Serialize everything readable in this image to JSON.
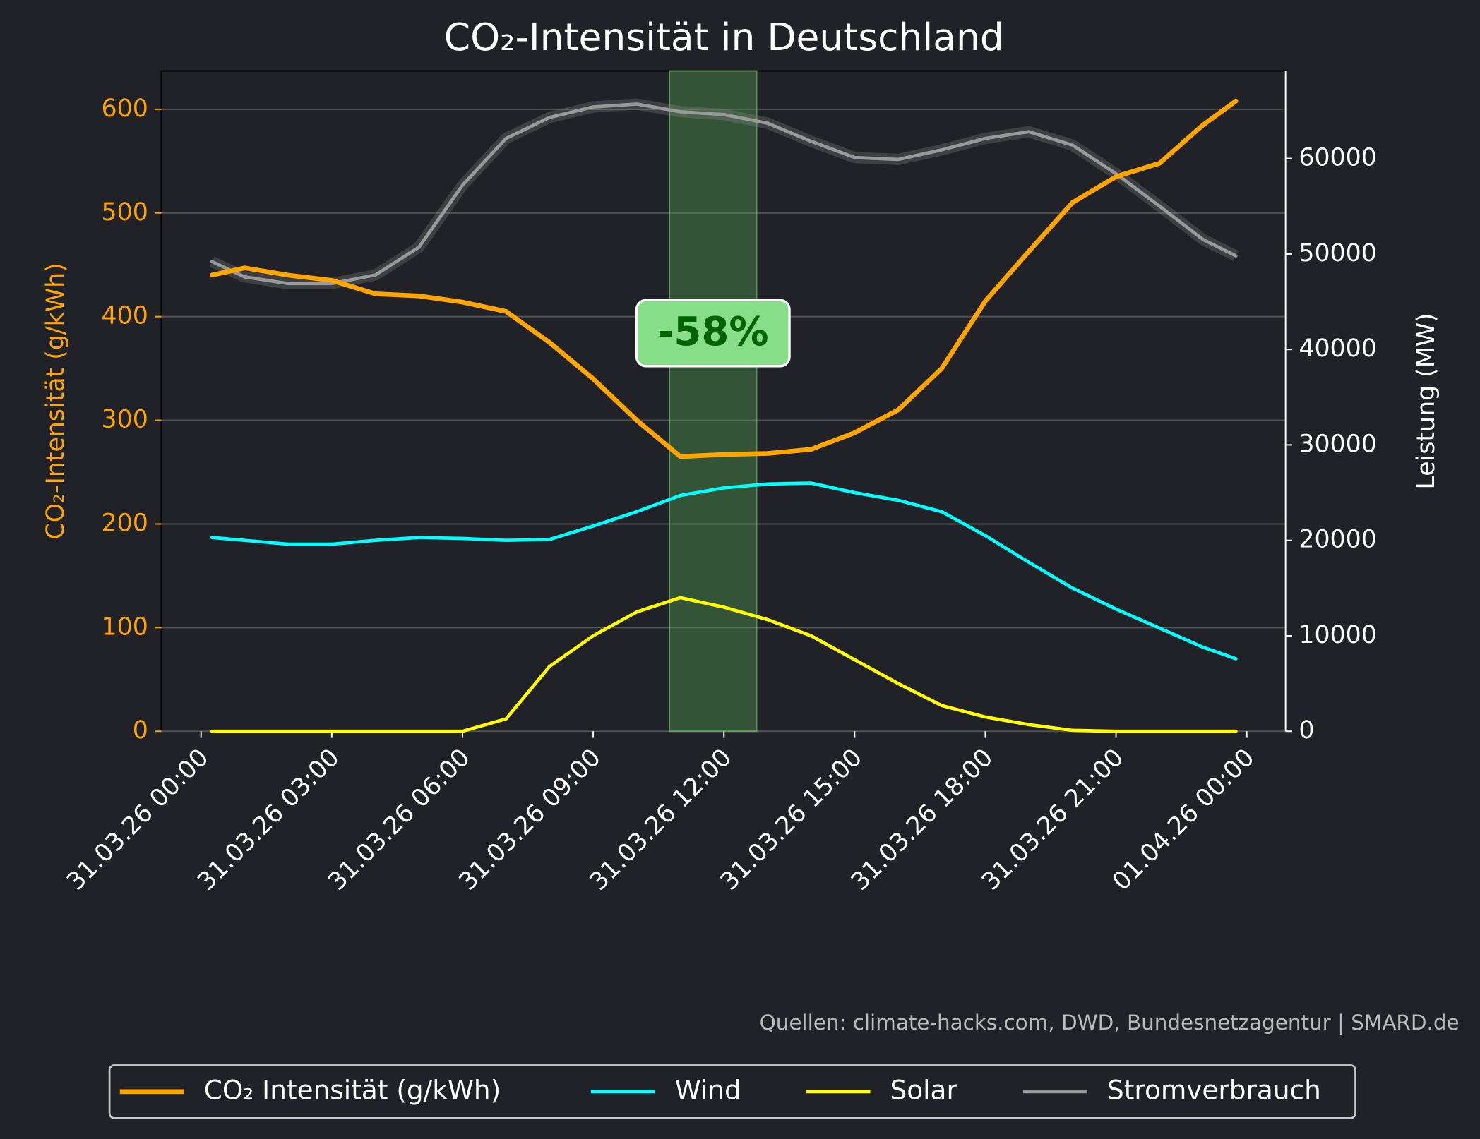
{
  "chart_data": {
    "type": "line",
    "title": "CO₂-Intensität in Deutschland",
    "ylabel": "CO₂-Intensität (g/kWh)",
    "y2label": "Leistung (MW)",
    "source": "Quellen: climate-hacks.com, DWD, Bundesnetzagentur | SMARD.de",
    "x": [
      0.25,
      1,
      2,
      3,
      4,
      5,
      6,
      7,
      8,
      9,
      10,
      11,
      12,
      13,
      14,
      15,
      16,
      17,
      18,
      19,
      20,
      21,
      22,
      23,
      23.75
    ],
    "xlim": [
      -0.91,
      24.89
    ],
    "xticks": [
      {
        "value": 0,
        "label": "31.03.26 00:00"
      },
      {
        "value": 3,
        "label": "31.03.26 03:00"
      },
      {
        "value": 6,
        "label": "31.03.26 06:00"
      },
      {
        "value": 9,
        "label": "31.03.26 09:00"
      },
      {
        "value": 12,
        "label": "31.03.26 12:00"
      },
      {
        "value": 15,
        "label": "31.03.26 15:00"
      },
      {
        "value": 18,
        "label": "31.03.26 18:00"
      },
      {
        "value": 21,
        "label": "31.03.26 21:00"
      },
      {
        "value": 24,
        "label": "01.04.26 00:00"
      }
    ],
    "ylim": [
      0,
      637
    ],
    "yticks": [
      0,
      100,
      200,
      300,
      400,
      500,
      600
    ],
    "y2lim": [
      0,
      69170
    ],
    "y2ticks": [
      0,
      10000,
      20000,
      30000,
      40000,
      50000,
      60000
    ],
    "grid": true,
    "highlight": [
      10.75,
      12.75
    ],
    "annotation": {
      "text": "-58%",
      "x": 11.75,
      "y": 385
    },
    "series": [
      {
        "name": "CO₂ Intensität (g/kWh)",
        "color": "#ffa500",
        "axis": "y",
        "values": [
          440,
          447,
          440,
          435,
          422,
          420,
          414,
          405,
          375,
          340,
          300,
          265,
          267,
          268,
          272,
          288,
          310,
          350,
          415,
          463,
          510,
          535,
          548,
          585,
          608
        ]
      },
      {
        "name": "Wind",
        "color": "#00ffff",
        "axis": "y2",
        "values": [
          20300,
          20000,
          19600,
          19600,
          20000,
          20300,
          20200,
          20000,
          20100,
          21500,
          23000,
          24700,
          25500,
          25900,
          26000,
          25000,
          24200,
          23000,
          20500,
          17700,
          15000,
          12800,
          10800,
          8800,
          7600
        ]
      },
      {
        "name": "Solar",
        "color": "#ffff00",
        "axis": "y2",
        "values": [
          0,
          0,
          0,
          0,
          0,
          0,
          0,
          1300,
          6800,
          10000,
          12500,
          14000,
          13000,
          11700,
          10000,
          7500,
          5000,
          2700,
          1500,
          700,
          100,
          0,
          0,
          0,
          0
        ]
      },
      {
        "name": "Stromverbrauch",
        "color": "#999999",
        "axis": "y2",
        "values": [
          49200,
          47600,
          46900,
          46900,
          47800,
          50700,
          57200,
          62100,
          64300,
          65400,
          65700,
          64900,
          64600,
          63700,
          61800,
          60100,
          59900,
          60900,
          62100,
          62800,
          61400,
          58400,
          55000,
          51500,
          49800
        ]
      }
    ]
  }
}
